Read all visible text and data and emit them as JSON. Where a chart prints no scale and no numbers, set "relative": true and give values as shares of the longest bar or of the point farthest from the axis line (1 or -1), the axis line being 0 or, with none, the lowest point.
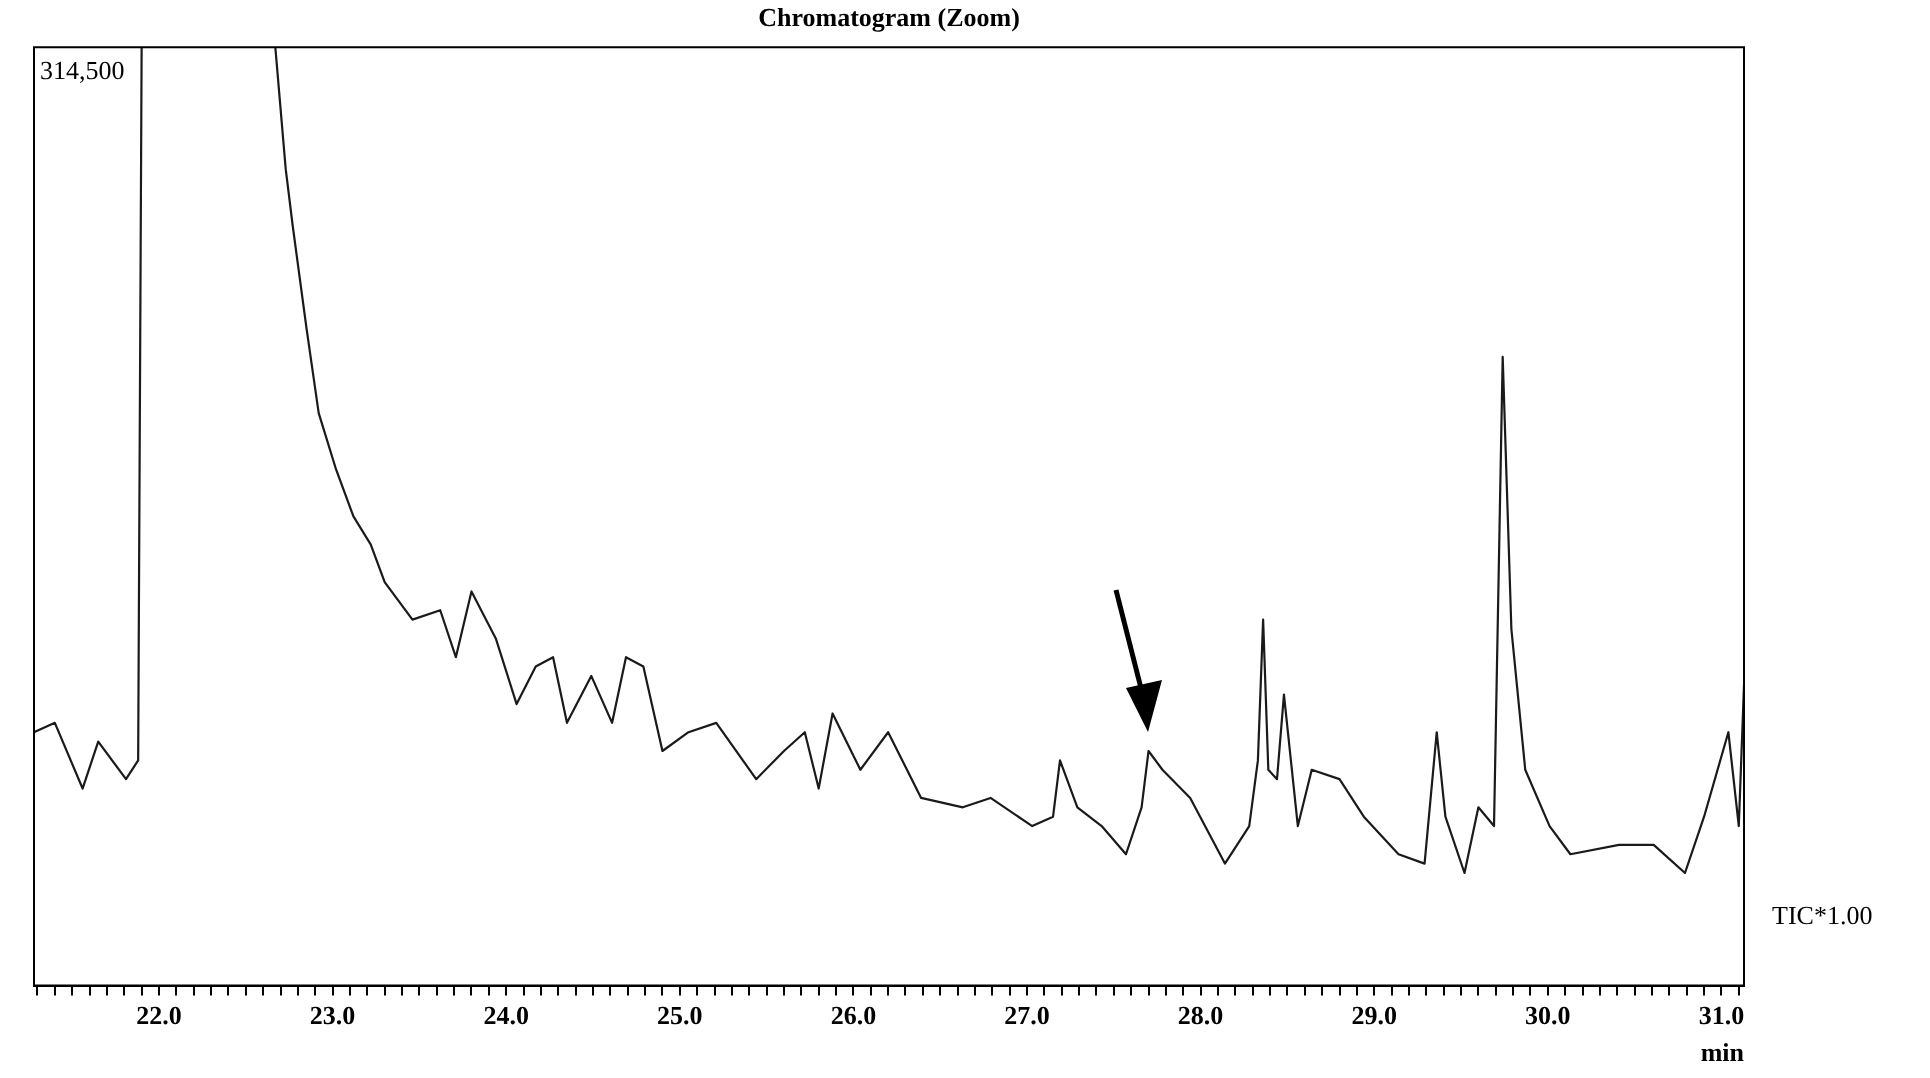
{
  "chart_data": {
    "type": "line",
    "title": "Chromatogram (Zoom)",
    "xlabel": "min",
    "relative": true,
    "annotations": [
      "314,500",
      "TIC*1.00"
    ],
    "xlim": [
      21.28,
      31.13
    ],
    "xticks": [
      {
        "value": 21.3,
        "label": null
      },
      {
        "value": 21.4,
        "label": null
      },
      {
        "value": 21.5,
        "label": null
      },
      {
        "value": 21.6,
        "label": null
      },
      {
        "value": 21.7,
        "label": null
      },
      {
        "value": 21.8,
        "label": null
      },
      {
        "value": 21.9,
        "label": null
      },
      {
        "value": 22,
        "label": "22.0"
      },
      {
        "value": 22.1,
        "label": null
      },
      {
        "value": 22.2,
        "label": null
      },
      {
        "value": 22.3,
        "label": null
      },
      {
        "value": 22.4,
        "label": null
      },
      {
        "value": 22.5,
        "label": null
      },
      {
        "value": 22.6,
        "label": null
      },
      {
        "value": 22.7,
        "label": null
      },
      {
        "value": 22.8,
        "label": null
      },
      {
        "value": 22.9,
        "label": null
      },
      {
        "value": 23,
        "label": "23.0"
      },
      {
        "value": 23.1,
        "label": null
      },
      {
        "value": 23.2,
        "label": null
      },
      {
        "value": 23.3,
        "label": null
      },
      {
        "value": 23.4,
        "label": null
      },
      {
        "value": 23.5,
        "label": null
      },
      {
        "value": 23.6,
        "label": null
      },
      {
        "value": 23.7,
        "label": null
      },
      {
        "value": 23.8,
        "label": null
      },
      {
        "value": 23.9,
        "label": null
      },
      {
        "value": 24,
        "label": "24.0"
      },
      {
        "value": 24.1,
        "label": null
      },
      {
        "value": 24.2,
        "label": null
      },
      {
        "value": 24.3,
        "label": null
      },
      {
        "value": 24.4,
        "label": null
      },
      {
        "value": 24.5,
        "label": null
      },
      {
        "value": 24.6,
        "label": null
      },
      {
        "value": 24.7,
        "label": null
      },
      {
        "value": 24.8,
        "label": null
      },
      {
        "value": 24.9,
        "label": null
      },
      {
        "value": 25,
        "label": "25.0"
      },
      {
        "value": 25.1,
        "label": null
      },
      {
        "value": 25.2,
        "label": null
      },
      {
        "value": 25.3,
        "label": null
      },
      {
        "value": 25.4,
        "label": null
      },
      {
        "value": 25.5,
        "label": null
      },
      {
        "value": 25.6,
        "label": null
      },
      {
        "value": 25.7,
        "label": null
      },
      {
        "value": 25.8,
        "label": null
      },
      {
        "value": 25.9,
        "label": null
      },
      {
        "value": 26,
        "label": "26.0"
      },
      {
        "value": 26.1,
        "label": null
      },
      {
        "value": 26.2,
        "label": null
      },
      {
        "value": 26.3,
        "label": null
      },
      {
        "value": 26.4,
        "label": null
      },
      {
        "value": 26.5,
        "label": null
      },
      {
        "value": 26.6,
        "label": null
      },
      {
        "value": 26.7,
        "label": null
      },
      {
        "value": 26.8,
        "label": null
      },
      {
        "value": 26.9,
        "label": null
      },
      {
        "value": 27,
        "label": "27.0"
      },
      {
        "value": 27.1,
        "label": null
      },
      {
        "value": 27.2,
        "label": null
      },
      {
        "value": 27.3,
        "label": null
      },
      {
        "value": 27.4,
        "label": null
      },
      {
        "value": 27.5,
        "label": null
      },
      {
        "value": 27.6,
        "label": null
      },
      {
        "value": 27.7,
        "label": null
      },
      {
        "value": 27.8,
        "label": null
      },
      {
        "value": 27.9,
        "label": null
      },
      {
        "value": 28,
        "label": "28.0"
      },
      {
        "value": 28.1,
        "label": null
      },
      {
        "value": 28.2,
        "label": null
      },
      {
        "value": 28.3,
        "label": null
      },
      {
        "value": 28.4,
        "label": null
      },
      {
        "value": 28.5,
        "label": null
      },
      {
        "value": 28.6,
        "label": null
      },
      {
        "value": 28.7,
        "label": null
      },
      {
        "value": 28.8,
        "label": null
      },
      {
        "value": 28.9,
        "label": null
      },
      {
        "value": 29,
        "label": "29.0"
      },
      {
        "value": 29.1,
        "label": null
      },
      {
        "value": 29.2,
        "label": null
      },
      {
        "value": 29.3,
        "label": null
      },
      {
        "value": 29.4,
        "label": null
      },
      {
        "value": 29.5,
        "label": null
      },
      {
        "value": 29.6,
        "label": null
      },
      {
        "value": 29.7,
        "label": null
      },
      {
        "value": 29.8,
        "label": null
      },
      {
        "value": 29.9,
        "label": null
      },
      {
        "value": 30,
        "label": "30.0"
      },
      {
        "value": 30.1,
        "label": null
      },
      {
        "value": 30.2,
        "label": null
      },
      {
        "value": 30.3,
        "label": null
      },
      {
        "value": 30.4,
        "label": null
      },
      {
        "value": 30.5,
        "label": null
      },
      {
        "value": 30.6,
        "label": null
      },
      {
        "value": 30.7,
        "label": null
      },
      {
        "value": 30.8,
        "label": null
      },
      {
        "value": 30.9,
        "label": null
      },
      {
        "value": 31,
        "label": "31.0"
      },
      {
        "value": 31.1,
        "label": null
      }
    ],
    "series": [
      {
        "color": "#1a1a1a",
        "x": [
          21.28,
          21.4,
          21.56,
          21.65,
          21.81,
          21.88,
          21.9,
          22.0,
          22.67,
          22.73,
          22.77,
          22.85,
          22.92,
          23.02,
          23.12,
          23.22,
          23.3,
          23.46,
          23.62,
          23.71,
          23.8,
          23.94,
          24.06,
          24.17,
          24.27,
          24.35,
          24.49,
          24.61,
          24.69,
          24.79,
          24.9,
          25.05,
          25.21,
          25.44,
          25.6,
          25.72,
          25.8,
          25.88,
          26.04,
          26.2,
          26.39,
          26.63,
          26.79,
          27.03,
          27.15,
          27.19,
          27.29,
          27.43,
          27.57,
          27.66,
          27.7,
          27.78,
          27.94,
          28.14,
          28.28,
          28.33,
          28.36,
          28.39,
          28.44,
          28.48,
          28.56,
          28.64,
          28.8,
          28.94,
          29.14,
          29.29,
          29.36,
          29.41,
          29.52,
          29.6,
          29.69,
          29.74,
          29.79,
          29.87,
          30.01,
          30.13,
          30.41,
          30.61,
          30.79,
          30.9,
          31.04,
          31.1,
          31.13
        ],
        "values": [
          0.27,
          0.28,
          0.21,
          0.26,
          0.22,
          0.24,
          1,
          null,
          1,
          0.87,
          0.81,
          0.7,
          0.61,
          0.55,
          0.5,
          0.47,
          0.43,
          0.39,
          0.4,
          0.35,
          0.42,
          0.37,
          0.3,
          0.34,
          0.35,
          0.28,
          0.33,
          0.28,
          0.35,
          0.34,
          0.25,
          0.27,
          0.28,
          0.22,
          0.25,
          0.27,
          0.21,
          0.29,
          0.23,
          0.27,
          0.2,
          0.19,
          0.2,
          0.17,
          0.18,
          0.24,
          0.19,
          0.17,
          0.14,
          0.19,
          0.25,
          0.23,
          0.2,
          0.13,
          0.17,
          0.24,
          0.39,
          0.23,
          0.22,
          0.31,
          0.17,
          0.23,
          0.22,
          0.18,
          0.14,
          0.13,
          0.27,
          0.18,
          0.12,
          0.19,
          0.17,
          0.67,
          0.38,
          0.23,
          0.17,
          0.14,
          0.15,
          0.15,
          0.12,
          0.18,
          0.27,
          0.17,
          0.32
        ]
      }
    ]
  }
}
